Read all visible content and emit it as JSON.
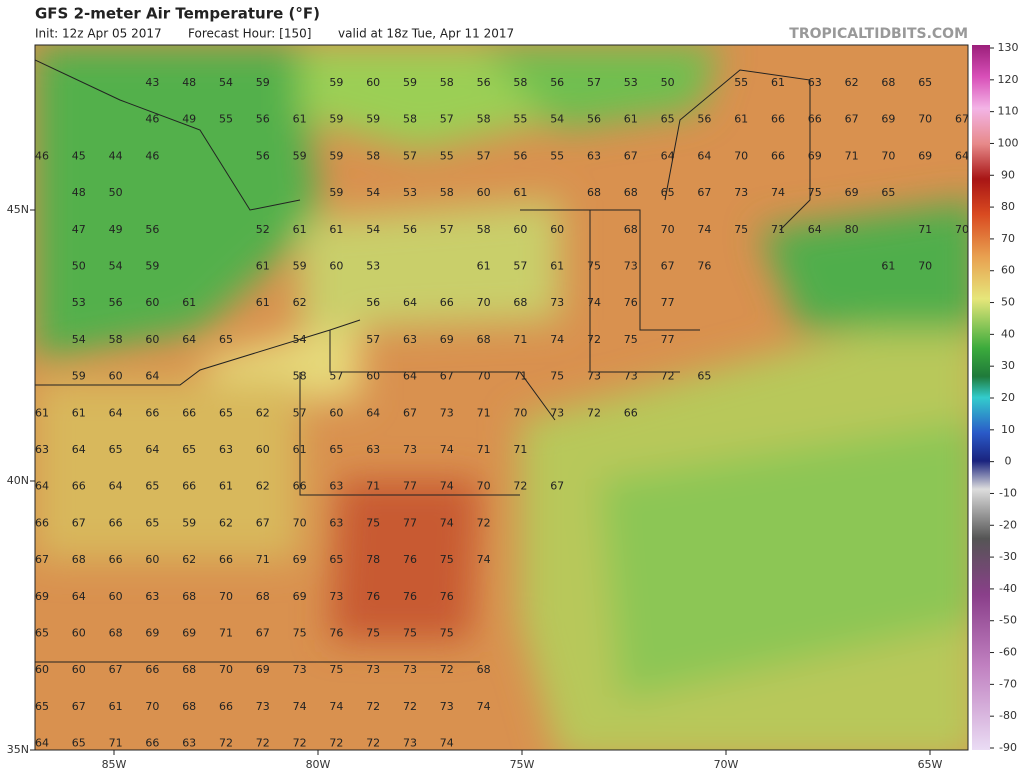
{
  "header": {
    "title": "GFS 2-meter Air Temperature (°F)",
    "init": "Init: 12z Apr 05 2017",
    "forecast": "Forecast Hour: [150]",
    "valid": "valid at 18z Tue, Apr 11 2017",
    "credit": "TROPICALTIDBITS.COM"
  },
  "map": {
    "values": [
      [
        null,
        null,
        null,
        43,
        48,
        54,
        59,
        null,
        59,
        60,
        59,
        58,
        56,
        58,
        56,
        57,
        53,
        50,
        null,
        55,
        61,
        63,
        62,
        68,
        65
      ],
      [
        null,
        null,
        null,
        46,
        49,
        55,
        56,
        61,
        59,
        59,
        58,
        57,
        58,
        55,
        54,
        56,
        61,
        65,
        56,
        61,
        66,
        66,
        67,
        69,
        70,
        67
      ],
      [
        46,
        45,
        44,
        46,
        null,
        null,
        56,
        59,
        59,
        58,
        57,
        55,
        57,
        56,
        55,
        63,
        67,
        64,
        64,
        70,
        66,
        69,
        71,
        70,
        69,
        64
      ],
      [
        null,
        48,
        50,
        null,
        null,
        null,
        null,
        null,
        59,
        54,
        53,
        58,
        60,
        61,
        null,
        68,
        68,
        65,
        67,
        73,
        74,
        75,
        69,
        65
      ],
      [
        null,
        47,
        49,
        56,
        null,
        null,
        52,
        61,
        61,
        54,
        56,
        57,
        58,
        60,
        60,
        null,
        68,
        70,
        74,
        75,
        71,
        64,
        80,
        null,
        71,
        70
      ],
      [
        null,
        50,
        54,
        59,
        null,
        null,
        61,
        59,
        60,
        53,
        null,
        null,
        61,
        57,
        61,
        75,
        73,
        67,
        76,
        null,
        null,
        null,
        null,
        61,
        70
      ],
      [
        null,
        53,
        56,
        60,
        61,
        null,
        61,
        62,
        null,
        56,
        64,
        66,
        70,
        68,
        73,
        74,
        76,
        77
      ],
      [
        null,
        54,
        58,
        60,
        64,
        65,
        null,
        54,
        null,
        57,
        63,
        69,
        68,
        71,
        74,
        72,
        75,
        77
      ],
      [
        null,
        59,
        60,
        64,
        null,
        null,
        null,
        58,
        57,
        60,
        64,
        67,
        70,
        71,
        75,
        73,
        73,
        72,
        65
      ],
      [
        61,
        61,
        64,
        66,
        66,
        65,
        62,
        57,
        60,
        64,
        67,
        73,
        71,
        70,
        73,
        72,
        66
      ],
      [
        63,
        64,
        65,
        64,
        65,
        63,
        60,
        61,
        65,
        63,
        73,
        74,
        71,
        71
      ],
      [
        64,
        66,
        64,
        65,
        66,
        61,
        62,
        66,
        63,
        71,
        77,
        74,
        70,
        72,
        67
      ],
      [
        66,
        67,
        66,
        65,
        59,
        62,
        67,
        70,
        63,
        75,
        77,
        74,
        72
      ],
      [
        67,
        68,
        66,
        60,
        62,
        66,
        71,
        69,
        65,
        78,
        76,
        75,
        74
      ],
      [
        69,
        64,
        60,
        63,
        68,
        70,
        68,
        69,
        73,
        76,
        76,
        76
      ],
      [
        65,
        60,
        68,
        69,
        69,
        71,
        67,
        75,
        76,
        75,
        75,
        75
      ],
      [
        60,
        60,
        67,
        66,
        68,
        70,
        69,
        73,
        75,
        73,
        73,
        72,
        68
      ],
      [
        65,
        67,
        61,
        70,
        68,
        66,
        73,
        74,
        74,
        72,
        72,
        73,
        74
      ],
      [
        64,
        65,
        71,
        66,
        63,
        72,
        72,
        72,
        72,
        72,
        73,
        74
      ]
    ]
  },
  "axes": {
    "lon": [
      "85W",
      "80W",
      "75W",
      "70W",
      "65W"
    ],
    "lat": [
      "45N",
      "40N",
      "35N"
    ]
  },
  "colorbar": {
    "ticks": [
      130,
      120,
      110,
      100,
      90,
      80,
      70,
      60,
      50,
      40,
      30,
      20,
      10,
      0,
      -10,
      -20,
      -30,
      -40,
      -50,
      -60,
      -70,
      -80,
      -90
    ]
  }
}
